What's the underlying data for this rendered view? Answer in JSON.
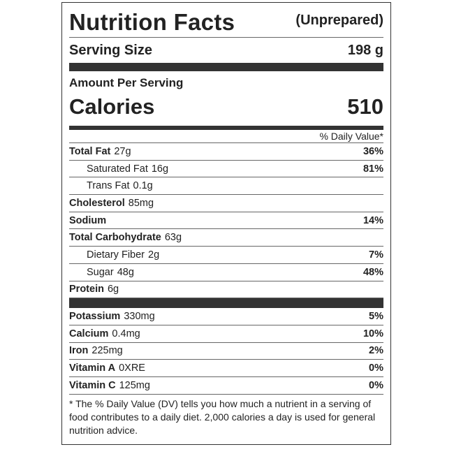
{
  "header": {
    "title": "Nutrition Facts",
    "subtitle": "(Unprepared)"
  },
  "serving": {
    "label": "Serving Size",
    "value": "198 g"
  },
  "amount_label": "Amount Per Serving",
  "calories": {
    "label": "Calories",
    "value": "510"
  },
  "dv_header": "% Daily Value*",
  "nutrients": [
    {
      "name": "Total Fat",
      "amount": "27g",
      "dv": "36%",
      "indent": false
    },
    {
      "name": "Saturated Fat",
      "amount": "16g",
      "dv": "81%",
      "indent": true
    },
    {
      "name": "Trans Fat",
      "amount": "0.1g",
      "indent": true
    },
    {
      "name": "Cholesterol",
      "amount": "85mg",
      "indent": false
    },
    {
      "name": "Sodium",
      "dv": "14%",
      "indent": false
    },
    {
      "name": "Total Carbohydrate",
      "amount": "63g",
      "indent": false
    },
    {
      "name": "Dietary Fiber",
      "amount": "2g",
      "dv": "7%",
      "indent": true
    },
    {
      "name": "Sugar",
      "amount": "48g",
      "dv": "48%",
      "indent": true
    },
    {
      "name": "Protein",
      "amount": "6g",
      "indent": false
    }
  ],
  "minerals": [
    {
      "name": "Potassium",
      "amount": "330mg",
      "dv": "5%"
    },
    {
      "name": "Calcium",
      "amount": "0.4mg",
      "dv": "10%"
    },
    {
      "name": "Iron",
      "amount": "225mg",
      "dv": "2%"
    },
    {
      "name": "Vitamin A",
      "amount": "0XRE",
      "dv": "0%"
    },
    {
      "name": "Vitamin C",
      "amount": "125mg",
      "dv": "0%"
    }
  ],
  "footnote": "* The % Daily Value (DV) tells you how much a nutrient in a serving of food contributes to a daily diet. 2,000 calories a day is used for general nutrition advice."
}
